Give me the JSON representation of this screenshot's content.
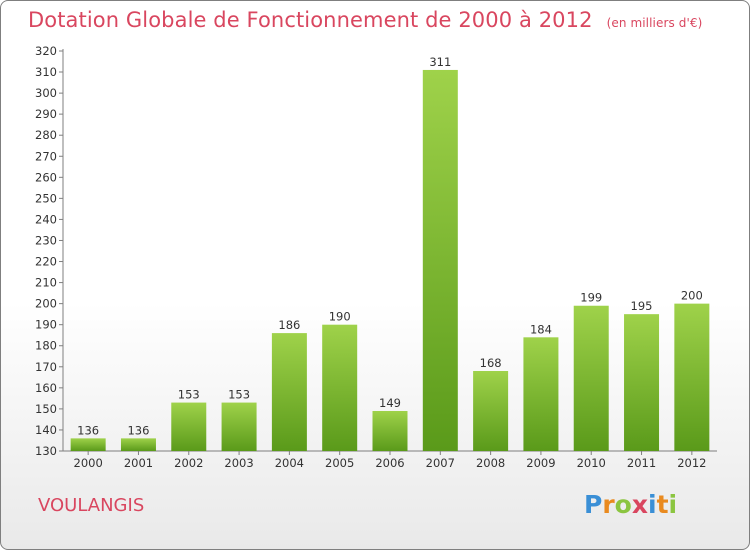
{
  "header": {
    "title": "Dotation Globale de Fonctionnement de 2000 à 2012",
    "unit": "(en milliers d'€)"
  },
  "footer": {
    "commune": "VOULANGIS",
    "logo": "Proxiti"
  },
  "colors": {
    "title": "#d9465f",
    "bar_top": "#9fd24a",
    "bar_bottom": "#5a9a1a"
  },
  "chart_data": {
    "type": "bar",
    "title": "Dotation Globale de Fonctionnement de 2000 à 2012",
    "subtitle": "(en milliers d'€)",
    "xlabel": "",
    "ylabel": "",
    "categories": [
      "2000",
      "2001",
      "2002",
      "2003",
      "2004",
      "2005",
      "2006",
      "2007",
      "2008",
      "2009",
      "2010",
      "2011",
      "2012"
    ],
    "values": [
      136,
      136,
      153,
      153,
      186,
      190,
      149,
      311,
      168,
      184,
      199,
      195,
      200
    ],
    "ylim": [
      130,
      320
    ],
    "ytick_step": 10,
    "grid": false,
    "legend": "none"
  }
}
